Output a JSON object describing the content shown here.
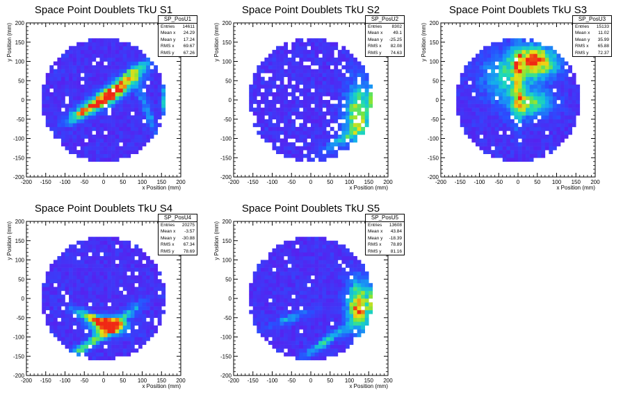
{
  "chart_data": [
    {
      "type": "heatmap",
      "title": "Space Point Doublets TkU S1",
      "xlabel": "x Position (mm)",
      "ylabel": "y Position (mm)",
      "xlim": [
        -200,
        200
      ],
      "ylim": [
        -200,
        200
      ],
      "xticks": [
        "-200",
        "-150",
        "-100",
        "-50",
        "0",
        "50",
        "100",
        "150",
        "200"
      ],
      "yticks": [
        "-200",
        "-150",
        "-100",
        "-50",
        "0",
        "50",
        "100",
        "150",
        "200"
      ],
      "stats": {
        "name": "SP_PosU1",
        "rows": [
          {
            "label": "Entries",
            "value": "14611"
          },
          {
            "label": "Mean x",
            "value": "24.29"
          },
          {
            "label": "Mean y",
            "value": "17.24"
          },
          {
            "label": "RMS x",
            "value": "69.67"
          },
          {
            "label": "RMS y",
            "value": "67.26"
          }
        ]
      },
      "hotspots": [
        {
          "x": 20,
          "y": 15,
          "sx": 55,
          "sy": 14,
          "angle": 33,
          "amp": 1.0
        },
        {
          "x": 80,
          "y": 75,
          "sx": 35,
          "sy": 10,
          "angle": 33,
          "amp": 0.5
        },
        {
          "x": -55,
          "y": -30,
          "sx": 35,
          "sy": 10,
          "angle": 33,
          "amp": 0.5
        },
        {
          "x": 160,
          "y": 0,
          "sx": 6,
          "sy": 30,
          "angle": 0,
          "amp": 0.55
        },
        {
          "x": 110,
          "y": -20,
          "sx": 50,
          "sy": 8,
          "angle": -70,
          "amp": 0.3
        }
      ]
    },
    {
      "type": "heatmap",
      "title": "Space Point Doublets TkU S2",
      "xlabel": "x Position (mm)",
      "ylabel": "y Position (mm)",
      "xlim": [
        -200,
        200
      ],
      "ylim": [
        -200,
        200
      ],
      "xticks": [
        "-200",
        "-150",
        "-100",
        "-50",
        "0",
        "50",
        "100",
        "150",
        "200"
      ],
      "yticks": [
        "-200",
        "-150",
        "-100",
        "-50",
        "0",
        "50",
        "100",
        "150",
        "200"
      ],
      "stats": {
        "name": "SP_PosU2",
        "rows": [
          {
            "label": "Entries",
            "value": "8302"
          },
          {
            "label": "Mean x",
            "value": "49.1"
          },
          {
            "label": "Mean y",
            "value": "-25.25"
          },
          {
            "label": "RMS x",
            "value": "82.08"
          },
          {
            "label": "RMS y",
            "value": "74.63"
          }
        ]
      },
      "hotspots": [
        {
          "x": 125,
          "y": -40,
          "sx": 25,
          "sy": 60,
          "angle": 0,
          "amp": 0.65
        },
        {
          "x": 160,
          "y": 0,
          "sx": 6,
          "sy": 30,
          "angle": 0,
          "amp": 0.55
        },
        {
          "x": 70,
          "y": -110,
          "sx": 40,
          "sy": 10,
          "angle": 35,
          "amp": 0.3
        }
      ]
    },
    {
      "type": "heatmap",
      "title": "Space Point Doublets TkU S3",
      "xlabel": "x Position (mm)",
      "ylabel": "y Position (mm)",
      "xlim": [
        -200,
        200
      ],
      "ylim": [
        -200,
        200
      ],
      "xticks": [
        "-200",
        "-150",
        "-100",
        "-50",
        "0",
        "50",
        "100",
        "150",
        "200"
      ],
      "yticks": [
        "-200",
        "-150",
        "-100",
        "-50",
        "0",
        "50",
        "100",
        "150",
        "200"
      ],
      "stats": {
        "name": "SP_PosU3",
        "rows": [
          {
            "label": "Entries",
            "value": "15133"
          },
          {
            "label": "Mean x",
            "value": "11.02"
          },
          {
            "label": "Mean y",
            "value": "35.99"
          },
          {
            "label": "RMS x",
            "value": "65.88"
          },
          {
            "label": "RMS y",
            "value": "72.37"
          }
        ]
      },
      "hotspots": [
        {
          "x": 45,
          "y": 100,
          "sx": 40,
          "sy": 30,
          "angle": 0,
          "amp": 0.85
        },
        {
          "x": 30,
          "y": -10,
          "sx": 40,
          "sy": 25,
          "angle": 0,
          "amp": 0.6
        },
        {
          "x": -40,
          "y": 60,
          "sx": 40,
          "sy": 40,
          "angle": 0,
          "amp": 0.4
        },
        {
          "x": 0,
          "y": 40,
          "sx": 80,
          "sy": 10,
          "angle": 90,
          "amp": 0.35
        }
      ]
    },
    {
      "type": "heatmap",
      "title": "Space Point Doublets TkU S4",
      "xlabel": "x Position (mm)",
      "ylabel": "y Position (mm)",
      "xlim": [
        -200,
        200
      ],
      "ylim": [
        -200,
        200
      ],
      "xticks": [
        "-200",
        "-150",
        "-100",
        "-50",
        "0",
        "50",
        "100",
        "150",
        "200"
      ],
      "yticks": [
        "-200",
        "-150",
        "-100",
        "-50",
        "0",
        "50",
        "100",
        "150",
        "200"
      ],
      "stats": {
        "name": "SP_PosU4",
        "rows": [
          {
            "label": "Entries",
            "value": "20275"
          },
          {
            "label": "Mean x",
            "value": "-3.57"
          },
          {
            "label": "Mean y",
            "value": "-30.88"
          },
          {
            "label": "RMS x",
            "value": "67.34"
          },
          {
            "label": "RMS y",
            "value": "78.69"
          }
        ]
      },
      "hotspots": [
        {
          "x": 10,
          "y": -70,
          "sx": 30,
          "sy": 15,
          "angle": 0,
          "amp": 1.0
        },
        {
          "x": -30,
          "y": -50,
          "sx": 40,
          "sy": 8,
          "angle": -22,
          "amp": 0.6
        },
        {
          "x": -40,
          "y": -120,
          "sx": 55,
          "sy": 8,
          "angle": 32,
          "amp": 0.6
        },
        {
          "x": 60,
          "y": -40,
          "sx": 40,
          "sy": 8,
          "angle": 35,
          "amp": 0.35
        }
      ]
    },
    {
      "type": "heatmap",
      "title": "Space Point Doublets TkU S5",
      "xlabel": "x Position (mm)",
      "ylabel": "y Position (mm)",
      "xlim": [
        -200,
        200
      ],
      "ylim": [
        -200,
        200
      ],
      "xticks": [
        "-200",
        "-150",
        "-100",
        "-50",
        "0",
        "50",
        "100",
        "150",
        "200"
      ],
      "yticks": [
        "-200",
        "-150",
        "-100",
        "-50",
        "0",
        "50",
        "100",
        "150",
        "200"
      ],
      "stats": {
        "name": "SP_PosU5",
        "rows": [
          {
            "label": "Entries",
            "value": "13608"
          },
          {
            "label": "Mean x",
            "value": "43.84"
          },
          {
            "label": "Mean y",
            "value": "-18.39"
          },
          {
            "label": "RMS x",
            "value": "78.89"
          },
          {
            "label": "RMS y",
            "value": "81.16"
          }
        ]
      },
      "hotspots": [
        {
          "x": 125,
          "y": -20,
          "sx": 22,
          "sy": 45,
          "angle": 0,
          "amp": 0.8
        },
        {
          "x": 160,
          "y": 0,
          "sx": 6,
          "sy": 25,
          "angle": 0,
          "amp": 0.6
        },
        {
          "x": 40,
          "y": -110,
          "sx": 50,
          "sy": 8,
          "angle": 35,
          "amp": 0.45
        },
        {
          "x": -50,
          "y": -50,
          "sx": 40,
          "sy": 8,
          "angle": 20,
          "amp": 0.3
        }
      ]
    }
  ]
}
